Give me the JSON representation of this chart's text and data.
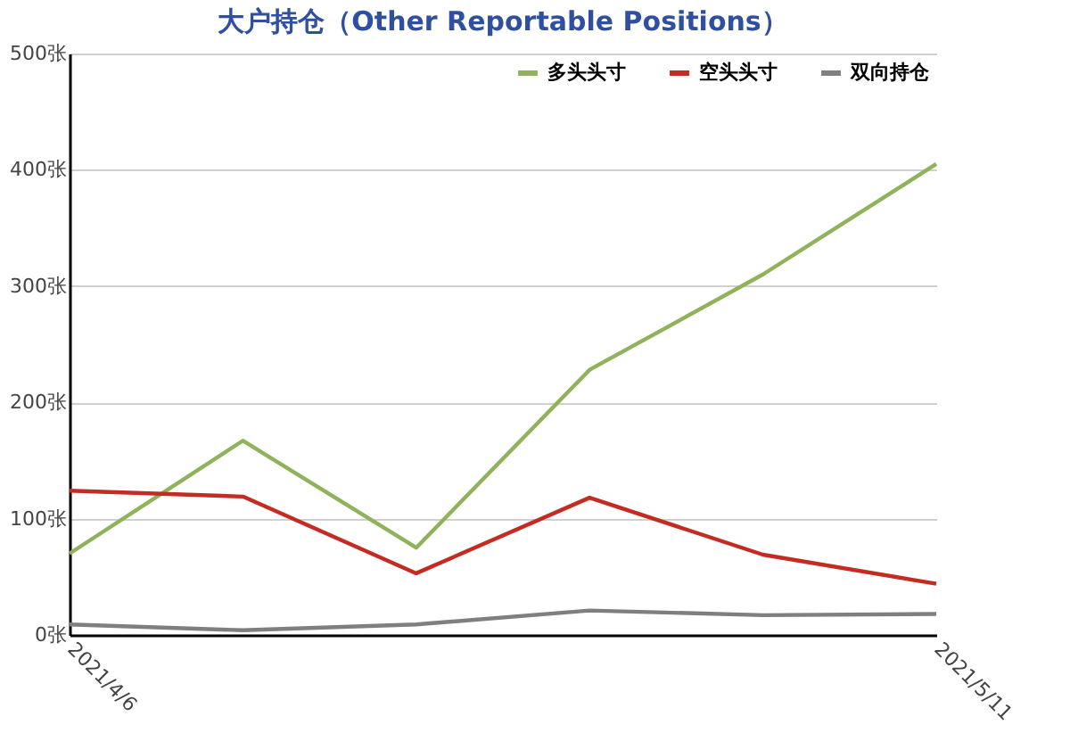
{
  "chart_data": {
    "type": "line",
    "title": "大户持仓（Other Reportable Positions）",
    "categories": [
      "2021/4/6",
      null,
      null,
      null,
      null,
      "2021/5/11"
    ],
    "series": [
      {
        "name": "多头头寸",
        "color": "#8fb25a",
        "values": [
          70,
          167,
          75,
          228,
          310,
          405
        ]
      },
      {
        "name": "空头头寸",
        "color": "#c42b22",
        "values": [
          124,
          119,
          53,
          118,
          69,
          44
        ]
      },
      {
        "name": "双向持仓",
        "color": "#7f7f7f",
        "values": [
          9,
          4,
          9,
          21,
          17,
          18
        ]
      }
    ],
    "ylim": [
      0,
      500
    ],
    "yticks": [
      {
        "value": 0,
        "label": "0张"
      },
      {
        "value": 100,
        "label": "100张"
      },
      {
        "value": 200,
        "label": "200张"
      },
      {
        "value": 300,
        "label": "300张"
      },
      {
        "value": 400,
        "label": "400张"
      },
      {
        "value": 500,
        "label": "500张"
      }
    ],
    "grid": "y",
    "legend": "top right",
    "marker": "none",
    "line_style": "solid"
  }
}
